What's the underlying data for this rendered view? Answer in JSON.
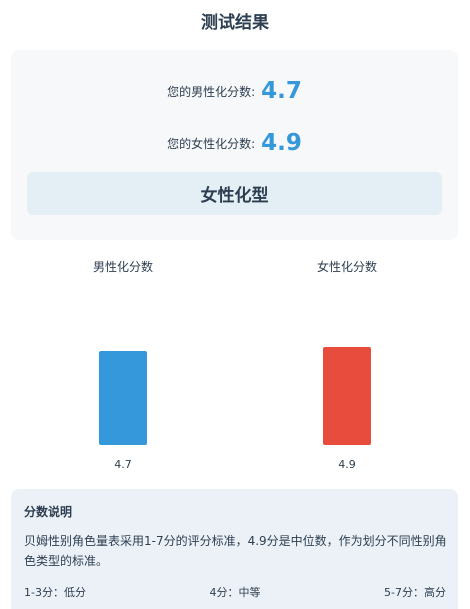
{
  "page": {
    "title": "测试结果"
  },
  "scores": {
    "male_label": "您的男性化分数:",
    "male_value": "4.7",
    "female_label": "您的女性化分数:",
    "female_value": "4.9",
    "type_result": "女性化型"
  },
  "chart_data": {
    "type": "bar",
    "categories": [
      "男性化分数",
      "女性化分数"
    ],
    "values": [
      4.7,
      4.9
    ],
    "value_labels": [
      "4.7",
      "4.9"
    ],
    "colors": [
      "#3498db",
      "#e74c3c"
    ],
    "ylim": [
      0,
      8
    ],
    "grid": false
  },
  "note": {
    "title": "分数说明",
    "body": "贝姆性别角色量表采用1-7分的评分标准，4.9分是中位数，作为划分不同性别角色类型的标准。",
    "ranges": [
      "1-3分：低分",
      "4分：中等",
      "5-7分：高分"
    ]
  }
}
